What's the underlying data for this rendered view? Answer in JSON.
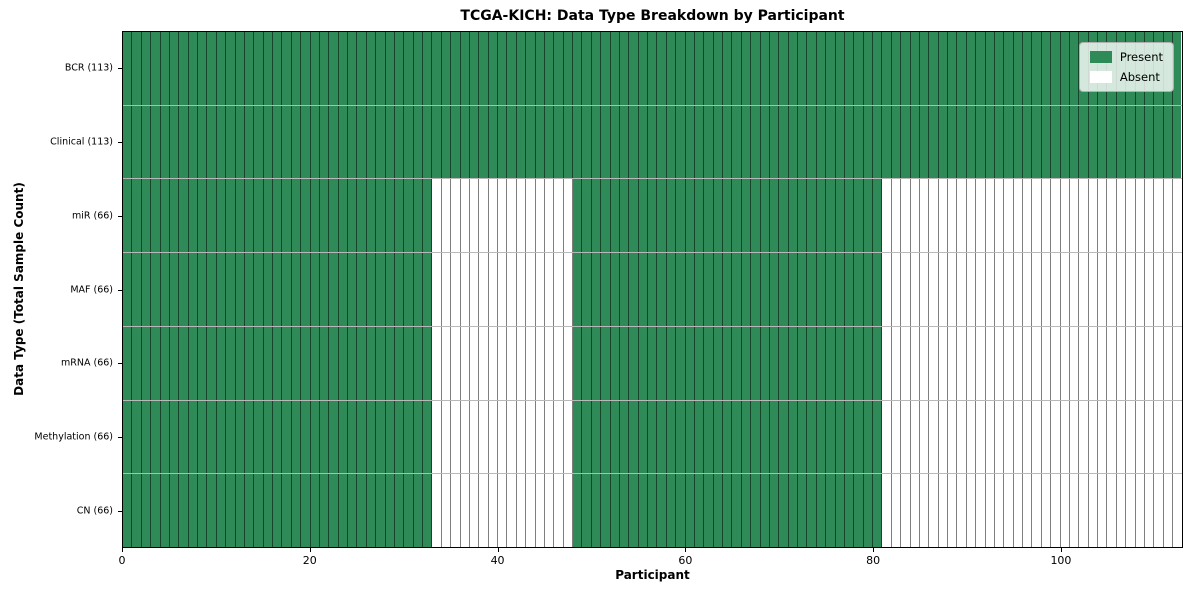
{
  "chart_data": {
    "type": "heatmap",
    "title": "TCGA-KICH: Data Type Breakdown by Participant",
    "xlabel": "Participant",
    "ylabel": "Data Type (Total Sample Count)",
    "n_participants": 113,
    "xlim": [
      0,
      113
    ],
    "x_ticks": [
      0,
      20,
      40,
      60,
      80,
      100
    ],
    "grid": "cell-borders",
    "colors": {
      "present": "#2e8b57",
      "absent": "#ffffff"
    },
    "legend": {
      "position": "upper right",
      "entries": [
        {
          "label": "Present",
          "state": "present"
        },
        {
          "label": "Absent",
          "state": "absent"
        }
      ]
    },
    "rows": [
      {
        "label": "BCR (113)",
        "data_type": "BCR",
        "present_total": 113,
        "present_ranges": [
          [
            0,
            113
          ]
        ]
      },
      {
        "label": "Clinical (113)",
        "data_type": "Clinical",
        "present_total": 113,
        "present_ranges": [
          [
            0,
            113
          ]
        ]
      },
      {
        "label": "miR (66)",
        "data_type": "miR",
        "present_total": 66,
        "present_ranges": [
          [
            0,
            33
          ],
          [
            48,
            81
          ]
        ]
      },
      {
        "label": "MAF (66)",
        "data_type": "MAF",
        "present_total": 66,
        "present_ranges": [
          [
            0,
            33
          ],
          [
            48,
            81
          ]
        ]
      },
      {
        "label": "mRNA (66)",
        "data_type": "mRNA",
        "present_total": 66,
        "present_ranges": [
          [
            0,
            33
          ],
          [
            48,
            81
          ]
        ]
      },
      {
        "label": "Methylation (66)",
        "data_type": "Methylation",
        "present_total": 66,
        "present_ranges": [
          [
            0,
            33
          ],
          [
            48,
            81
          ]
        ]
      },
      {
        "label": "CN (66)",
        "data_type": "CN",
        "present_total": 66,
        "present_ranges": [
          [
            0,
            33
          ],
          [
            48,
            81
          ]
        ]
      }
    ]
  }
}
